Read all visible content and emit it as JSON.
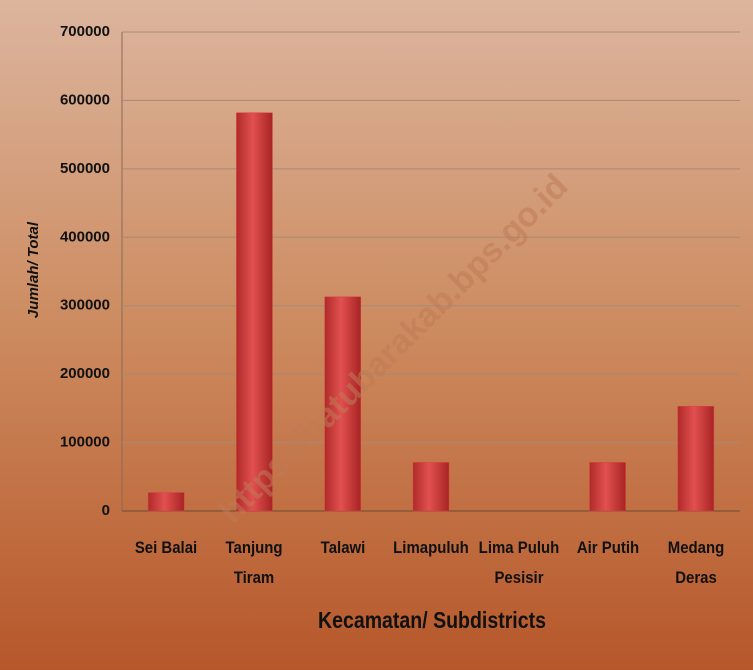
{
  "chart_data": {
    "type": "bar",
    "categories": [
      "Sei Balai",
      "Tanjung Tiram",
      "Talawi",
      "Limapuluh",
      "Lima Puluh Pesisir",
      "Air Putih",
      "Medang Deras"
    ],
    "values": [
      27000,
      582000,
      313000,
      71000,
      0,
      71000,
      153000
    ],
    "color": "#d9403f",
    "ylim": [
      0,
      700000
    ],
    "yticks": [
      0,
      100000,
      200000,
      300000,
      400000,
      500000,
      600000,
      700000
    ],
    "grid": true,
    "xlabel": "Kecamatan/ Subdistricts",
    "ylabel": "Jumlah/ Total",
    "watermark": "https://batubarakab.bps.go.id"
  }
}
